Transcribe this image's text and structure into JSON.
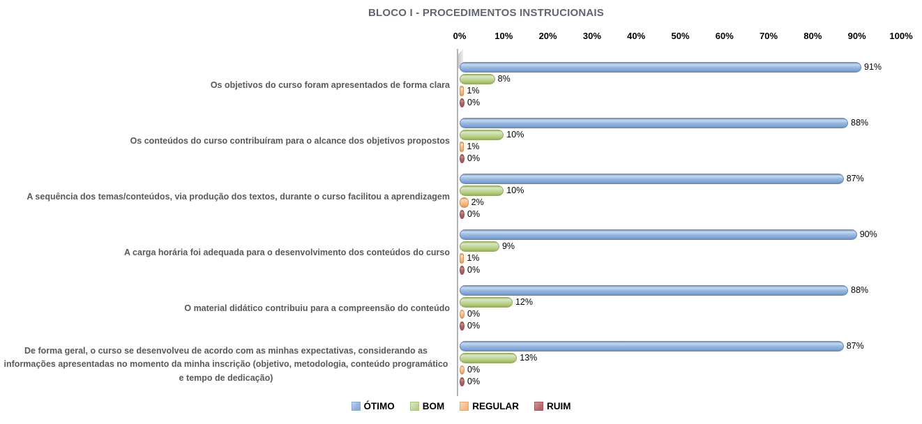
{
  "title": "BLOCO I - PROCEDIMENTOS INSTRUCIONAIS",
  "chart_data": {
    "type": "bar",
    "orientation": "horizontal",
    "style": "3d-cylinder",
    "title": "BLOCO I - PROCEDIMENTOS INSTRUCIONAIS",
    "categories": [
      "Os objetivos do curso foram apresentados de forma clara",
      "Os conteúdos do curso contribuíram para o alcance dos objetivos propostos",
      "A sequência dos temas/conteúdos, via produção dos textos, durante o curso facilitou a aprendizagem",
      "A carga horária foi adequada para o desenvolvimento dos conteúdos do curso",
      "O material didático contribuiu para a compreensão do conteúdo",
      "De forma geral, o curso se desenvolveu de acordo com as minhas expectativas, considerando as informações apresentadas no momento da minha inscrição (objetivo, metodologia, conteúdo programático e tempo de dedicação)"
    ],
    "series": [
      {
        "name": "ÓTIMO",
        "color": "#95B3D7",
        "values": [
          91,
          88,
          87,
          90,
          88,
          87
        ]
      },
      {
        "name": "BOM",
        "color": "#C3D69B",
        "values": [
          8,
          10,
          10,
          9,
          12,
          13
        ]
      },
      {
        "name": "REGULAR",
        "color": "#FAC090",
        "values": [
          1,
          1,
          2,
          1,
          0,
          0
        ]
      },
      {
        "name": "RUIM",
        "color": "#B06A6A",
        "values": [
          0,
          0,
          0,
          0,
          0,
          0
        ]
      }
    ],
    "data_label_format": "{value}%",
    "x_ticks": [
      "0%",
      "10%",
      "20%",
      "30%",
      "40%",
      "50%",
      "60%",
      "70%",
      "80%",
      "90%",
      "100%"
    ],
    "xlim": [
      0,
      100
    ],
    "grid": false,
    "legend_position": "bottom",
    "text_colors": {
      "title": "#5F6670",
      "category_labels": "#595959",
      "axis_ticks": "#000000",
      "data_labels": "#000000"
    }
  }
}
